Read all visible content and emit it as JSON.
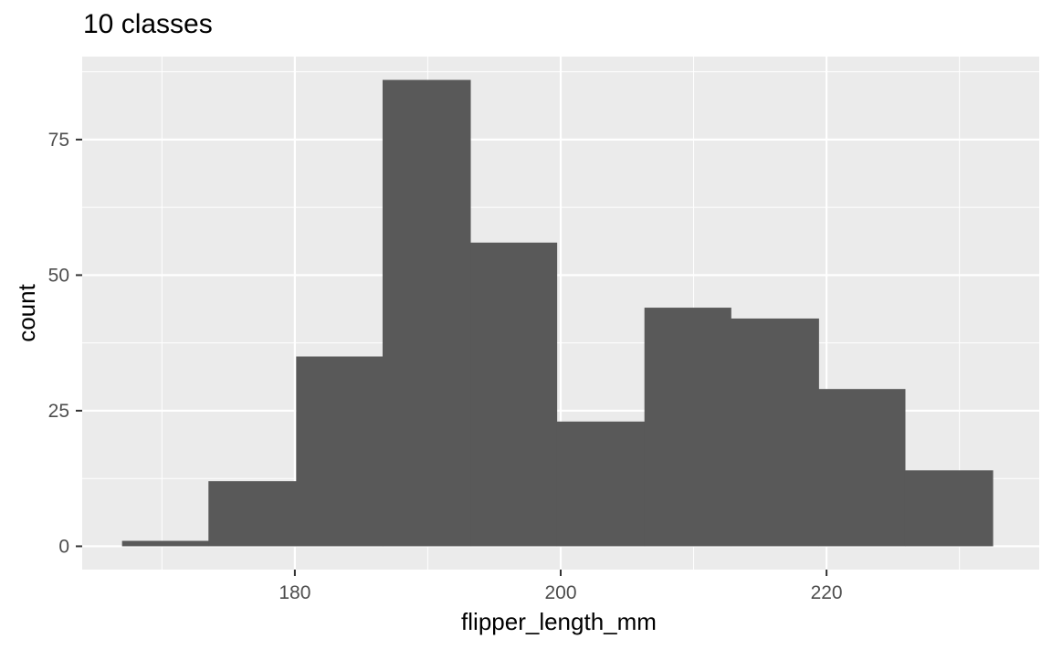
{
  "chart_data": {
    "type": "bar",
    "title": "10 classes",
    "xlabel": "flipper_length_mm",
    "ylabel": "count",
    "bins": [
      {
        "x0": 167.0,
        "x1": 173.5,
        "count": 1
      },
      {
        "x0": 173.5,
        "x1": 180.1,
        "count": 12
      },
      {
        "x0": 180.1,
        "x1": 186.6,
        "count": 35
      },
      {
        "x0": 186.6,
        "x1": 193.2,
        "count": 86
      },
      {
        "x0": 193.2,
        "x1": 199.7,
        "count": 56
      },
      {
        "x0": 199.7,
        "x1": 206.3,
        "count": 23
      },
      {
        "x0": 206.3,
        "x1": 212.8,
        "count": 44
      },
      {
        "x0": 212.8,
        "x1": 219.4,
        "count": 42
      },
      {
        "x0": 219.4,
        "x1": 225.9,
        "count": 29
      },
      {
        "x0": 225.9,
        "x1": 232.5,
        "count": 14
      }
    ],
    "xlim": [
      164.0,
      236.0
    ],
    "ylim": [
      -4.3,
      90.3
    ],
    "xticks": [
      180,
      200,
      220
    ],
    "xtick_labels": [
      "180",
      "200",
      "220"
    ],
    "yticks": [
      0,
      25,
      50,
      75
    ],
    "ytick_labels": [
      "0",
      "25",
      "50",
      "75"
    ],
    "grid": true,
    "colors": {
      "panel": "#EBEBEB",
      "grid": "#FFFFFF",
      "bar": "#595959",
      "axis_text": "#4D4D4D",
      "tick": "#333333"
    }
  }
}
